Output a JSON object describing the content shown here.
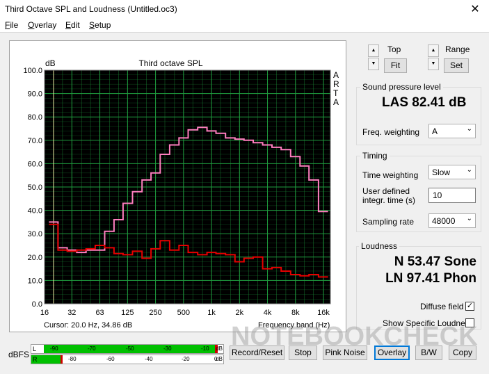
{
  "window": {
    "title": "Third Octave SPL and Loudness (Untitled.oc3)",
    "close_glyph": "✕"
  },
  "menu": [
    "File",
    "Overlay",
    "Edit",
    "Setup"
  ],
  "plot": {
    "arta_letters": [
      "A",
      "R",
      "T",
      "A"
    ]
  },
  "cursor_readout": "Cursor:     20.0 Hz, 34.86 dB",
  "frequency_band_label": "Frequency band (Hz)",
  "controls": {
    "top_label": "Top",
    "range_label": "Range",
    "fit_label": "Fit",
    "set_label": "Set",
    "spin_up": "▲",
    "spin_down": "▼"
  },
  "spl": {
    "group_title": "Sound pressure level",
    "value": "LAS 82.41 dB",
    "freq_weighting_label": "Freq. weighting",
    "freq_weighting_value": "A"
  },
  "timing": {
    "group_title": "Timing",
    "time_weighting_label": "Time weighting",
    "time_weighting_value": "Slow",
    "user_time_label_1": "User defined",
    "user_time_label_2": "integr. time (s)",
    "user_time_value": "10",
    "sampling_rate_label": "Sampling rate",
    "sampling_rate_value": "48000"
  },
  "loudness": {
    "group_title": "Loudness",
    "n_value": "N 53.47 Sone",
    "ln_value": "LN 97.41 Phon",
    "diffuse_field_label": "Diffuse field",
    "diffuse_field_checked": true,
    "show_specific_label": "Show Specific Loudness",
    "show_specific_checked": false
  },
  "meters": {
    "dbfs_label": "dBFS",
    "left": {
      "channel": "L",
      "ticks": [
        "-90",
        "-70",
        "-50",
        "-30",
        "-10"
      ],
      "unit": "dB"
    },
    "right": {
      "channel": "R",
      "ticks": [
        "-80",
        "-60",
        "-40",
        "-20",
        "0"
      ],
      "unit": "dB"
    }
  },
  "buttons": {
    "record_reset": "Record/Reset",
    "stop": "Stop",
    "pink_noise": "Pink Noise",
    "overlay": "Overlay",
    "bw": "B/W",
    "copy": "Copy"
  },
  "watermark": "NOTEBOOKCHECK",
  "colors": {
    "plot_bg": "#000000",
    "grid": "#1f9e3f",
    "pink_series": "#ff7fbf",
    "red_series": "#e60000",
    "meter_green": "#00c000",
    "meter_red": "#d00000"
  },
  "chart_data": {
    "type": "line",
    "title": "Third octave SPL",
    "ylabel": "dB",
    "xlabel": "Frequency band (Hz)",
    "ylim": [
      0,
      100
    ],
    "yticks": [
      "0.0",
      "10.0",
      "20.0",
      "30.0",
      "40.0",
      "50.0",
      "60.0",
      "70.0",
      "80.0",
      "90.0",
      "100.0"
    ],
    "xticks": [
      "16",
      "32",
      "63",
      "125",
      "250",
      "500",
      "1k",
      "2k",
      "4k",
      "8k",
      "16k"
    ],
    "x": [
      20,
      25,
      31.5,
      40,
      50,
      63,
      80,
      100,
      125,
      160,
      200,
      250,
      315,
      400,
      500,
      630,
      800,
      1000,
      1250,
      1600,
      2000,
      2500,
      3150,
      4000,
      5000,
      6300,
      8000,
      10000,
      12500,
      16000
    ],
    "series": [
      {
        "values": [
          35,
          24,
          23,
          22,
          23,
          23,
          31,
          36,
          43,
          48,
          53,
          56,
          64,
          68,
          71,
          74.5,
          75.5,
          74,
          73,
          71,
          70.5,
          70,
          69,
          68,
          67,
          66,
          63,
          59,
          53,
          39.5
        ]
      },
      {
        "values": [
          34,
          23,
          22.5,
          23,
          23.5,
          25,
          24,
          21.5,
          21,
          22.5,
          19.5,
          23.5,
          27,
          23,
          25,
          22,
          21,
          22,
          21.5,
          21,
          18,
          19.5,
          20,
          15,
          15.5,
          14,
          12.5,
          12,
          12.5,
          11.5
        ]
      }
    ]
  }
}
